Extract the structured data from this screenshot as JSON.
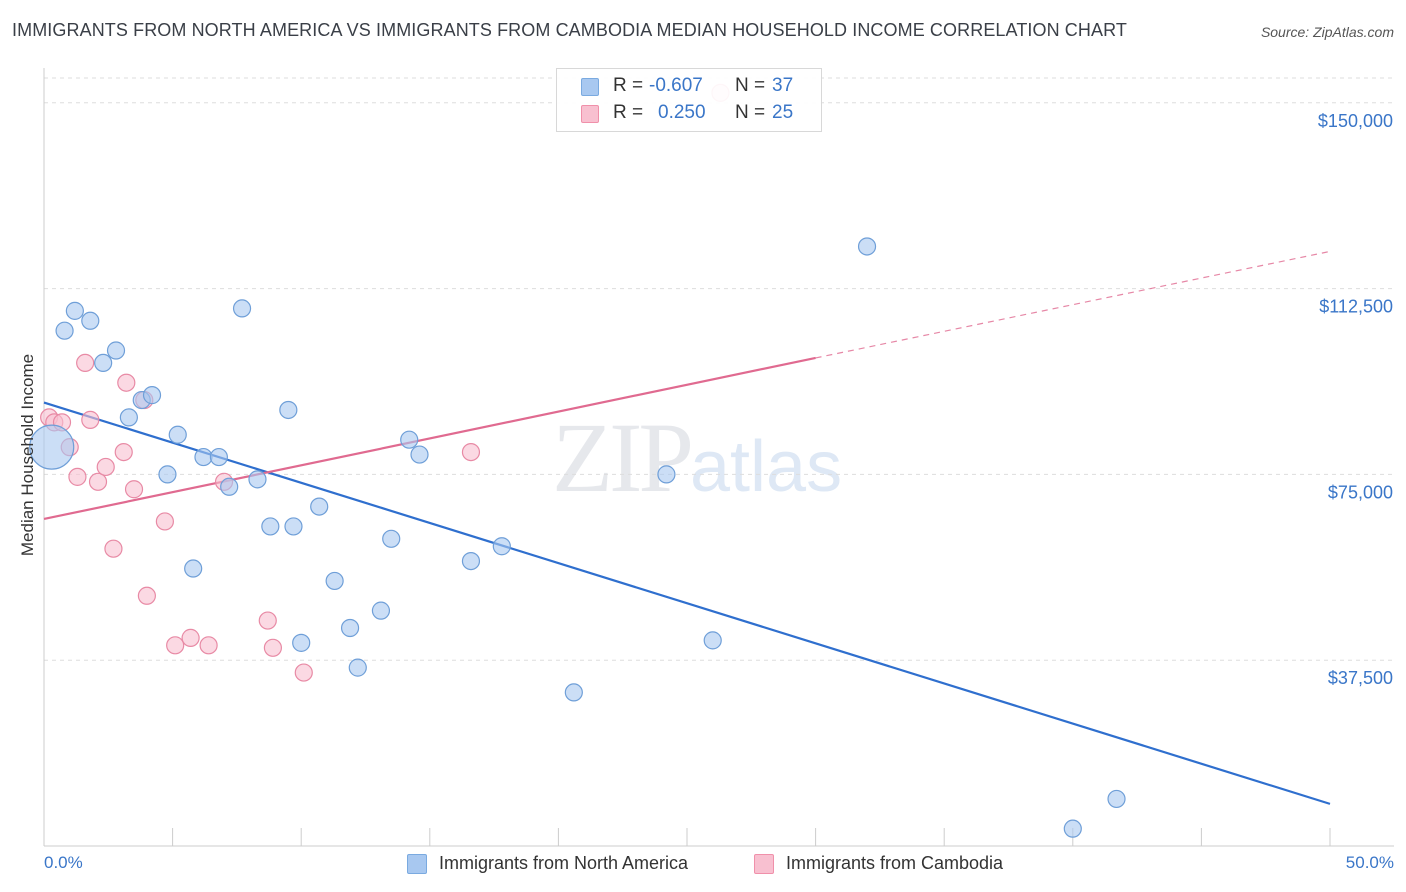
{
  "title": "IMMIGRANTS FROM NORTH AMERICA VS IMMIGRANTS FROM CAMBODIA MEDIAN HOUSEHOLD INCOME CORRELATION CHART",
  "source": "Source: ZipAtlas.com",
  "watermark": {
    "zip": "ZIP",
    "atlas": "atlas"
  },
  "stats": [
    {
      "r_label": "R =",
      "r": "-0.607",
      "n_label": "N =",
      "n": "37",
      "color": "#a8c8f0",
      "border": "#7aaae0"
    },
    {
      "r_label": "R =",
      "r": "0.250",
      "n_label": "N =",
      "n": "25",
      "color": "#f8c0d0",
      "border": "#f090aa"
    }
  ],
  "colors": {
    "north_america_fill": "#a8c8f0",
    "north_america_stroke": "#6f9fd8",
    "north_america_line": "#2f6fce",
    "cambodia_fill": "#f8c0d0",
    "cambodia_stroke": "#e88aa5",
    "cambodia_line": "#e06a90",
    "axis_text": "#3a76c8",
    "grid": "#dddddd"
  },
  "chart_data": {
    "type": "scatter",
    "title": "IMMIGRANTS FROM NORTH AMERICA VS IMMIGRANTS FROM CAMBODIA MEDIAN HOUSEHOLD INCOME CORRELATION CHART",
    "xlabel": "",
    "ylabel": "Median Household Income",
    "xlim": [
      0,
      50
    ],
    "ylim": [
      0,
      155000
    ],
    "x_tick_labels": [
      "0.0%",
      "50.0%"
    ],
    "y_ticks": [
      37500,
      75000,
      112500,
      150000
    ],
    "y_tick_labels": [
      "$37,500",
      "$75,000",
      "$112,500",
      "$150,000"
    ],
    "grid": "horizontal dashed",
    "legend_position": "bottom",
    "series": [
      {
        "name": "Immigrants from North America",
        "r": -0.607,
        "n": 37,
        "trend": {
          "x": [
            0,
            50
          ],
          "y": [
            89500,
            8500
          ]
        },
        "points": [
          {
            "x": 0.3,
            "y": 80500,
            "big": true
          },
          {
            "x": 0.8,
            "y": 104000
          },
          {
            "x": 1.2,
            "y": 108000
          },
          {
            "x": 1.8,
            "y": 106000
          },
          {
            "x": 2.3,
            "y": 97500
          },
          {
            "x": 2.8,
            "y": 100000
          },
          {
            "x": 3.3,
            "y": 86500
          },
          {
            "x": 3.8,
            "y": 90000
          },
          {
            "x": 4.2,
            "y": 91000
          },
          {
            "x": 5.2,
            "y": 83000
          },
          {
            "x": 4.8,
            "y": 75000
          },
          {
            "x": 5.8,
            "y": 56000
          },
          {
            "x": 6.2,
            "y": 78500
          },
          {
            "x": 6.8,
            "y": 78500
          },
          {
            "x": 7.2,
            "y": 72500
          },
          {
            "x": 7.7,
            "y": 108500
          },
          {
            "x": 8.3,
            "y": 74000
          },
          {
            "x": 8.8,
            "y": 64500
          },
          {
            "x": 9.5,
            "y": 88000
          },
          {
            "x": 9.7,
            "y": 64500
          },
          {
            "x": 10.0,
            "y": 41000
          },
          {
            "x": 10.7,
            "y": 68500
          },
          {
            "x": 11.3,
            "y": 53500
          },
          {
            "x": 11.9,
            "y": 44000
          },
          {
            "x": 12.2,
            "y": 36000
          },
          {
            "x": 13.1,
            "y": 47500
          },
          {
            "x": 13.5,
            "y": 62000
          },
          {
            "x": 14.2,
            "y": 82000
          },
          {
            "x": 14.6,
            "y": 79000
          },
          {
            "x": 16.6,
            "y": 57500
          },
          {
            "x": 17.8,
            "y": 60500
          },
          {
            "x": 20.6,
            "y": 31000
          },
          {
            "x": 24.2,
            "y": 75000
          },
          {
            "x": 26.0,
            "y": 41500
          },
          {
            "x": 32.0,
            "y": 121000
          },
          {
            "x": 40.0,
            "y": 3500
          },
          {
            "x": 41.7,
            "y": 9500
          }
        ]
      },
      {
        "name": "Immigrants from Cambodia",
        "r": 0.25,
        "n": 25,
        "trend": {
          "x": [
            0,
            30
          ],
          "y": [
            66000,
            98500
          ]
        },
        "trend_dashed": {
          "x": [
            30,
            50
          ],
          "y": [
            98500,
            120000
          ]
        },
        "points": [
          {
            "x": 0.2,
            "y": 86500
          },
          {
            "x": 0.4,
            "y": 85500
          },
          {
            "x": 0.7,
            "y": 85500
          },
          {
            "x": 1.0,
            "y": 80500
          },
          {
            "x": 1.3,
            "y": 74500
          },
          {
            "x": 1.6,
            "y": 97500
          },
          {
            "x": 1.8,
            "y": 86000
          },
          {
            "x": 2.1,
            "y": 73500
          },
          {
            "x": 2.4,
            "y": 76500
          },
          {
            "x": 2.7,
            "y": 60000
          },
          {
            "x": 3.1,
            "y": 79500
          },
          {
            "x": 3.2,
            "y": 93500
          },
          {
            "x": 3.5,
            "y": 72000
          },
          {
            "x": 3.9,
            "y": 90000
          },
          {
            "x": 4.0,
            "y": 50500
          },
          {
            "x": 4.7,
            "y": 65500
          },
          {
            "x": 5.1,
            "y": 40500
          },
          {
            "x": 5.7,
            "y": 42000
          },
          {
            "x": 6.4,
            "y": 40500
          },
          {
            "x": 7.0,
            "y": 73500
          },
          {
            "x": 8.7,
            "y": 45500
          },
          {
            "x": 8.9,
            "y": 40000
          },
          {
            "x": 10.1,
            "y": 35000
          },
          {
            "x": 16.6,
            "y": 79500
          },
          {
            "x": 26.3,
            "y": 152000
          }
        ]
      }
    ]
  }
}
